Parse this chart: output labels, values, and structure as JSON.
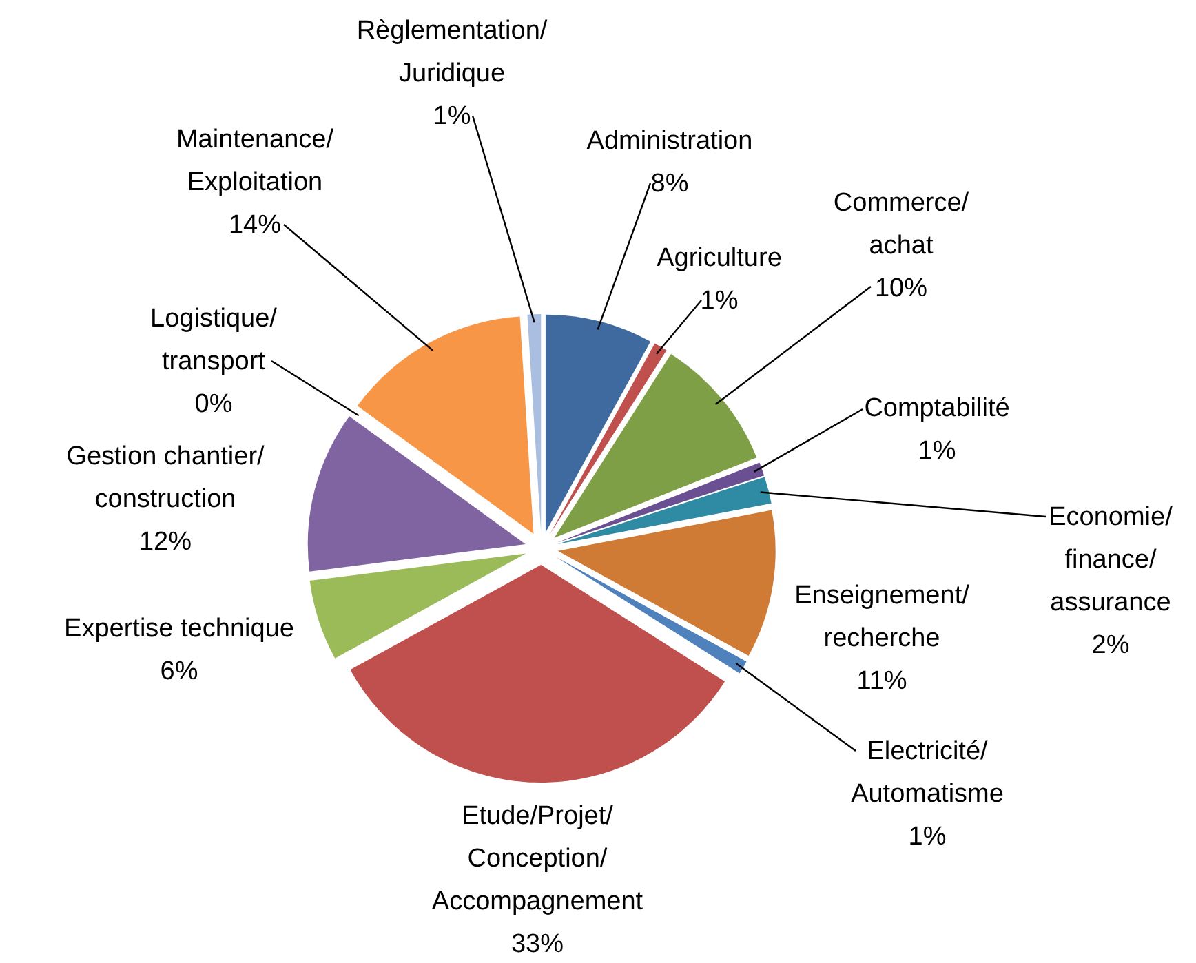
{
  "chart_data": {
    "type": "pie",
    "categories": [
      "Administration",
      "Agriculture",
      "Commerce/achat",
      "Comptabilité",
      "Economie/finance/assurance",
      "Enseignement/recherche",
      "Electricité/Automatisme",
      "Etude/Projet/Conception/Accompagnement",
      "Expertise technique",
      "Gestion chantier/construction",
      "Logistique/transport",
      "Maintenance/Exploitation",
      "Règlementation/Juridique"
    ],
    "values": [
      8,
      1,
      10,
      1,
      2,
      11,
      1,
      33,
      6,
      12,
      0,
      14,
      1
    ],
    "value_labels": [
      "8%",
      "1%",
      "10%",
      "1%",
      "2%",
      "11%",
      "1%",
      "33%",
      "6%",
      "12%",
      "0%",
      "14%",
      "1%"
    ],
    "colors": [
      "#3f6aa0",
      "#c0504d",
      "#7f9f47",
      "#6a4f92",
      "#2f8aa3",
      "#d07b35",
      "#4f81bd",
      "#c0504d",
      "#9bbb59",
      "#8064a2",
      "#4bacc6",
      "#f79646",
      "#a9bee0"
    ]
  }
}
